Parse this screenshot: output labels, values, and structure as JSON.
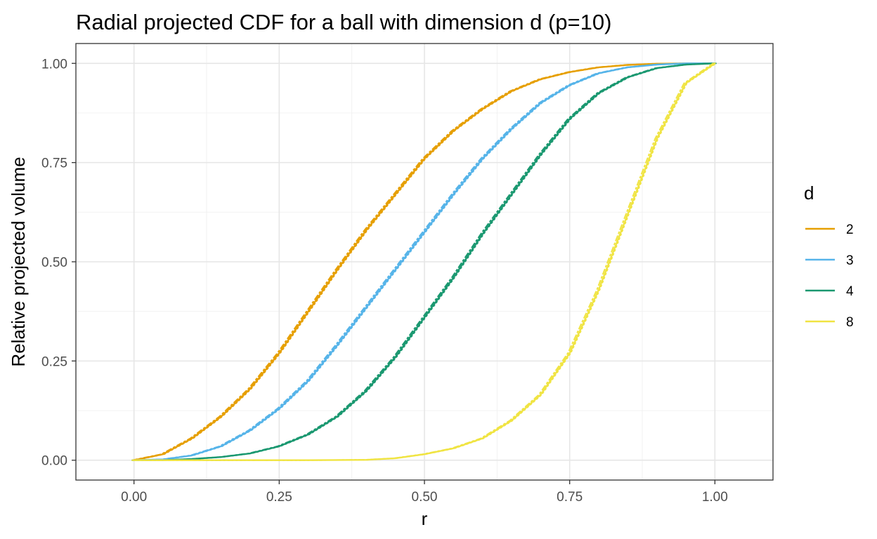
{
  "chart_data": {
    "type": "line",
    "title": "Radial projected CDF for a ball with dimension d (p=10)",
    "xlabel": "r",
    "ylabel": "Relative projected volume",
    "xlim": [
      -0.1,
      1.1
    ],
    "ylim": [
      -0.05,
      1.05
    ],
    "x_ticks": [
      "0.00",
      "0.25",
      "0.50",
      "0.75",
      "1.00"
    ],
    "y_ticks": [
      "0.00",
      "0.25",
      "0.50",
      "0.75",
      "1.00"
    ],
    "x_tick_values": [
      0,
      0.25,
      0.5,
      0.75,
      1
    ],
    "y_tick_values": [
      0,
      0.25,
      0.5,
      0.75,
      1
    ],
    "grid": true,
    "legend": {
      "title": "d",
      "position": "right"
    },
    "series": [
      {
        "name": "2",
        "color": "#E69F00",
        "x": [
          0,
          0.05,
          0.1,
          0.15,
          0.2,
          0.25,
          0.3,
          0.35,
          0.4,
          0.45,
          0.5,
          0.55,
          0.6,
          0.65,
          0.7,
          0.75,
          0.8,
          0.85,
          0.9,
          0.95,
          1
        ],
        "y": [
          0,
          0.015,
          0.055,
          0.11,
          0.18,
          0.27,
          0.375,
          0.48,
          0.58,
          0.67,
          0.76,
          0.83,
          0.885,
          0.93,
          0.96,
          0.978,
          0.99,
          0.996,
          0.999,
          1,
          1
        ]
      },
      {
        "name": "3",
        "color": "#56B4E9",
        "x": [
          0,
          0.05,
          0.1,
          0.15,
          0.2,
          0.25,
          0.3,
          0.35,
          0.4,
          0.45,
          0.5,
          0.55,
          0.6,
          0.65,
          0.7,
          0.75,
          0.8,
          0.85,
          0.9,
          0.95,
          1
        ],
        "y": [
          0,
          0.002,
          0.012,
          0.035,
          0.075,
          0.13,
          0.2,
          0.29,
          0.385,
          0.48,
          0.575,
          0.67,
          0.76,
          0.835,
          0.9,
          0.945,
          0.975,
          0.99,
          0.997,
          1,
          1
        ]
      },
      {
        "name": "4",
        "color": "#1A9870",
        "x": [
          0,
          0.05,
          0.1,
          0.15,
          0.2,
          0.25,
          0.3,
          0.35,
          0.4,
          0.45,
          0.5,
          0.55,
          0.6,
          0.65,
          0.7,
          0.75,
          0.8,
          0.85,
          0.9,
          0.95,
          1
        ],
        "y": [
          0,
          0,
          0.003,
          0.008,
          0.017,
          0.035,
          0.065,
          0.11,
          0.175,
          0.26,
          0.36,
          0.46,
          0.57,
          0.67,
          0.77,
          0.86,
          0.925,
          0.965,
          0.988,
          0.997,
          1
        ]
      },
      {
        "name": "8",
        "color": "#F0E442",
        "x": [
          0,
          0.1,
          0.2,
          0.3,
          0.4,
          0.45,
          0.5,
          0.55,
          0.6,
          0.65,
          0.7,
          0.75,
          0.8,
          0.85,
          0.9,
          0.95,
          1
        ],
        "y": [
          0,
          0,
          0,
          0,
          0.001,
          0.005,
          0.015,
          0.03,
          0.055,
          0.1,
          0.165,
          0.27,
          0.43,
          0.62,
          0.81,
          0.95,
          1
        ]
      }
    ]
  }
}
